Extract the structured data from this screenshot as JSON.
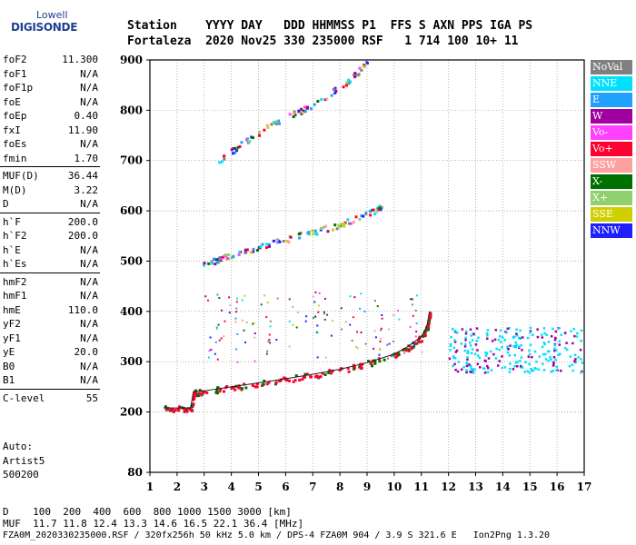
{
  "logo": {
    "brand": "Lowell",
    "product": "DIGISONDE"
  },
  "header": {
    "line1": "Station    YYYY DAY   DDD HHMMSS P1  FFS S AXN PPS IGA PS",
    "line2": "Fortaleza  2020 Nov25 330 235000 RSF   1 714 100 10+ 11"
  },
  "params": {
    "group1": [
      {
        "name": "foF2",
        "value": "11.300"
      },
      {
        "name": "foF1",
        "value": "N/A"
      },
      {
        "name": "foF1p",
        "value": "N/A"
      },
      {
        "name": "foE",
        "value": "N/A"
      },
      {
        "name": "foEp",
        "value": "0.40"
      },
      {
        "name": "fxI",
        "value": "11.90"
      },
      {
        "name": "foEs",
        "value": "N/A"
      },
      {
        "name": "fmin",
        "value": "1.70"
      }
    ],
    "group2": [
      {
        "name": "MUF(D)",
        "value": "36.44"
      },
      {
        "name": "M(D)",
        "value": "3.22"
      },
      {
        "name": "D",
        "value": "N/A"
      }
    ],
    "group3": [
      {
        "name": "h`F",
        "value": "200.0"
      },
      {
        "name": "h`F2",
        "value": "200.0"
      },
      {
        "name": "h`E",
        "value": "N/A"
      },
      {
        "name": "h`Es",
        "value": "N/A"
      }
    ],
    "group4": [
      {
        "name": "hmF2",
        "value": "N/A"
      },
      {
        "name": "hmF1",
        "value": "N/A"
      },
      {
        "name": "hmE",
        "value": "110.0"
      },
      {
        "name": "yF2",
        "value": "N/A"
      },
      {
        "name": "yF1",
        "value": "N/A"
      },
      {
        "name": "yE",
        "value": "20.0"
      },
      {
        "name": "B0",
        "value": "N/A"
      },
      {
        "name": "B1",
        "value": "N/A"
      }
    ],
    "group5": [
      {
        "name": "C-level",
        "value": "55"
      }
    ]
  },
  "auto": {
    "line1": "Auto:",
    "line2": "Artist5",
    "line3": "500200"
  },
  "legend": [
    {
      "label": "NoVal",
      "color": "#808080"
    },
    {
      "label": "NNE",
      "color": "#00e0ff"
    },
    {
      "label": "E",
      "color": "#20a0ff"
    },
    {
      "label": "W",
      "color": "#a000a0"
    },
    {
      "label": "Vo-",
      "color": "#ff40ff"
    },
    {
      "label": "Vo+",
      "color": "#ff0030"
    },
    {
      "label": "SSW",
      "color": "#ffa0a0"
    },
    {
      "label": "X-",
      "color": "#007000"
    },
    {
      "label": "X+",
      "color": "#90d070"
    },
    {
      "label": "SSE",
      "color": "#d0d000"
    },
    {
      "label": "NNW",
      "color": "#2020ff"
    }
  ],
  "footer": {
    "line1": "D    100  200  400  600  800 1000 1500 3000 [km]",
    "line2": "MUF  11.7 11.8 12.4 13.3 14.6 16.5 22.1 36.4 [MHz]",
    "line3": "FZA0M_2020330235000.RSF / 320fx256h 50 kHz 5.0 km / DPS-4 FZA0M 904 / 3.9 S 321.6 E   Ion2Png 1.3.20"
  },
  "chart_data": {
    "type": "scatter",
    "xlim": [
      1,
      17
    ],
    "ylim": [
      80,
      900
    ],
    "x_ticks": [
      1,
      2,
      3,
      4,
      5,
      6,
      7,
      8,
      9,
      10,
      11,
      12,
      13,
      14,
      15,
      16,
      17
    ],
    "y_ticks": [
      80,
      200,
      300,
      400,
      500,
      600,
      700,
      800,
      900
    ],
    "trace_traces": [
      {
        "name": "o-trace F",
        "x": [
          1.5,
          2.0,
          2.5,
          2.6,
          3.0,
          4.0,
          5.0,
          6.0,
          7.0,
          8.0,
          9.0,
          10.0,
          10.5,
          11.0,
          11.2,
          11.3
        ],
        "y": [
          208,
          208,
          208,
          240,
          242,
          250,
          258,
          266,
          275,
          285,
          298,
          315,
          330,
          350,
          370,
          400
        ]
      },
      {
        "name": "2nd hop",
        "x": [
          2.9,
          3.5,
          4.0,
          5.0,
          6.0,
          7.0,
          8.0,
          9.0,
          9.5
        ],
        "y": [
          495,
          505,
          515,
          530,
          545,
          560,
          575,
          595,
          610
        ]
      },
      {
        "name": "3rd hop",
        "x": [
          3.5,
          4.5,
          5.5,
          6.5,
          7.5,
          8.5,
          9.0
        ],
        "y": [
          700,
          740,
          775,
          800,
          830,
          870,
          900
        ]
      }
    ]
  }
}
